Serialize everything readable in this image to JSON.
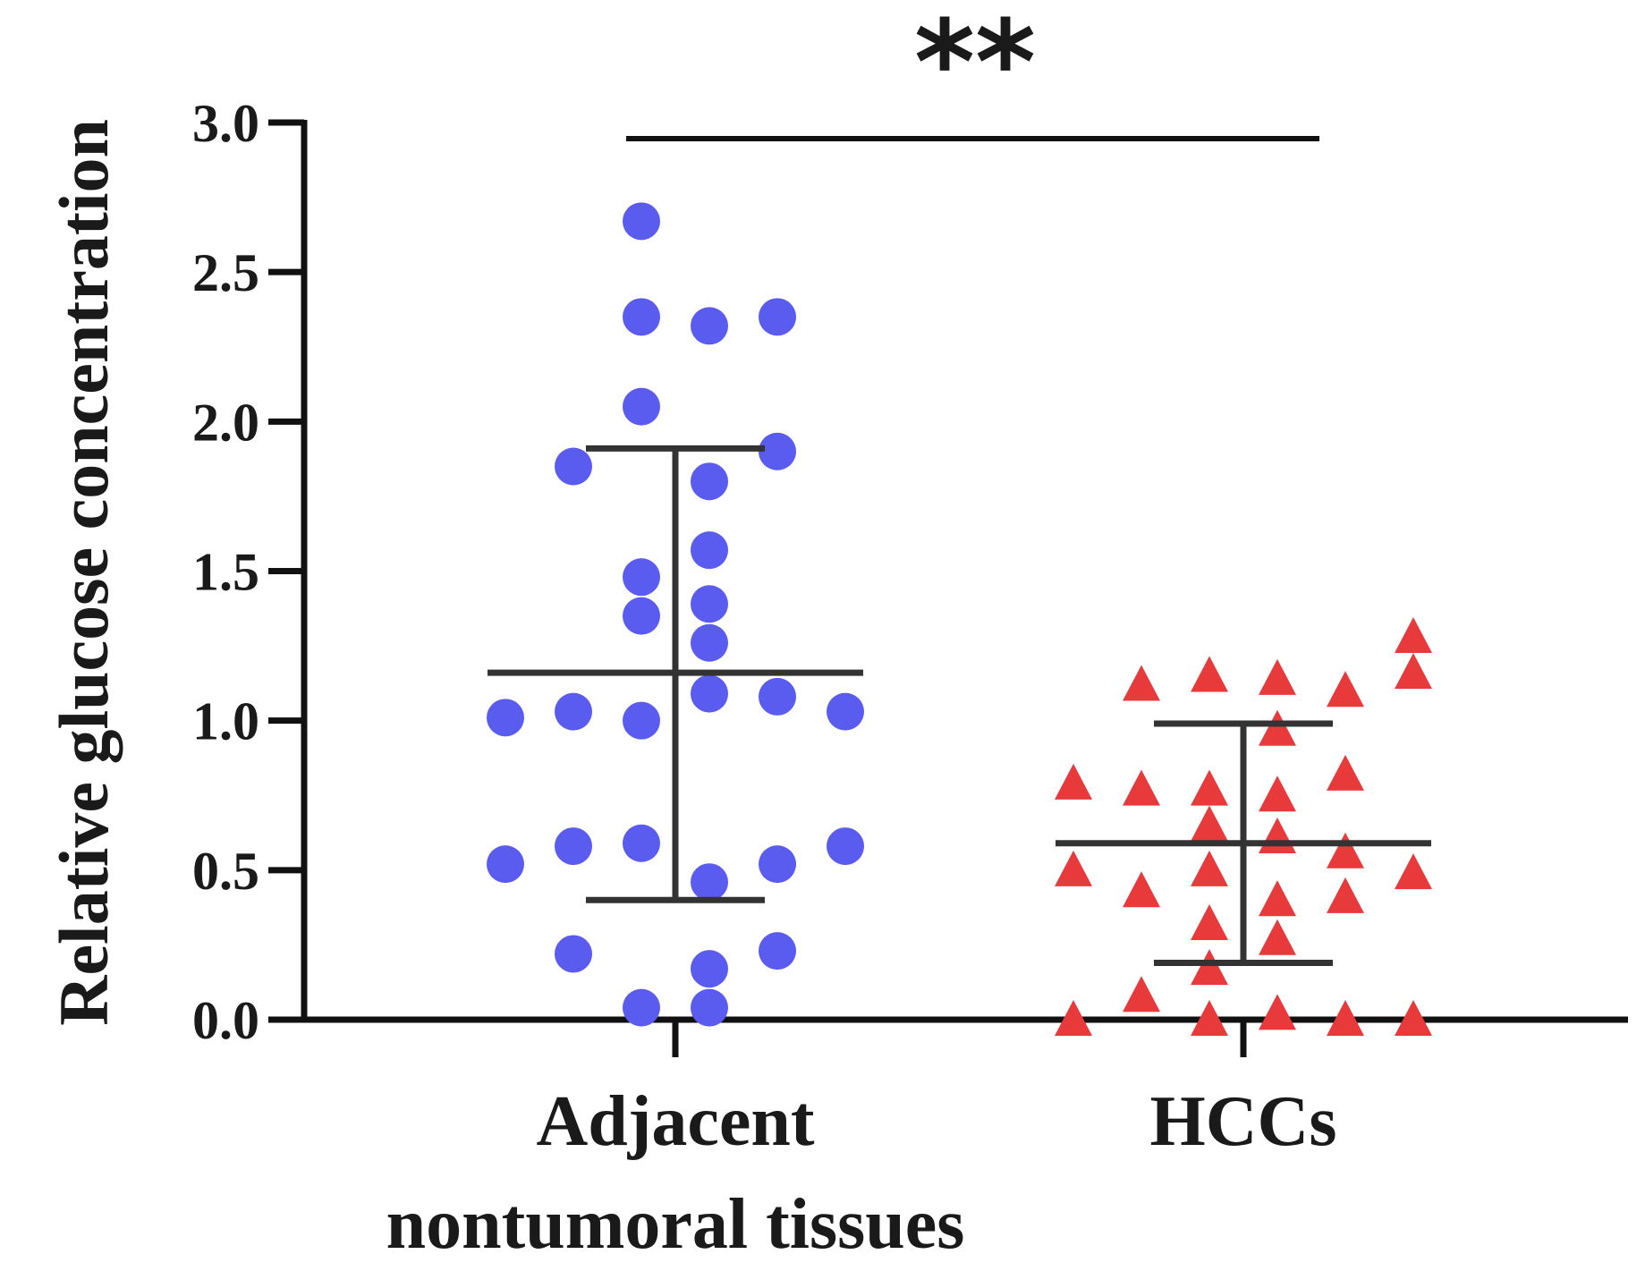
{
  "chart_data": {
    "type": "scatter",
    "ylabel": "Relative glucose concentration",
    "ylim": [
      0,
      3.0
    ],
    "yticks": [
      "0.0",
      "0.5",
      "1.0",
      "1.5",
      "2.0",
      "2.5",
      "3.0"
    ],
    "categories": [
      "Adjacent\nnontumoral tissues",
      "HCCs"
    ],
    "category_lines": [
      [
        "Adjacent",
        "nontumoral tissues"
      ],
      [
        "HCCs"
      ]
    ],
    "significance": "**",
    "series": [
      {
        "category": 0,
        "marker": "circle",
        "color": "#5a5cef",
        "mean": 1.16,
        "sd_upper": 1.91,
        "sd_lower": 0.4,
        "points": [
          {
            "y": 2.67,
            "offset": -0.5
          },
          {
            "y": 2.35,
            "offset": -0.5
          },
          {
            "y": 2.32,
            "offset": 0.5
          },
          {
            "y": 2.35,
            "offset": 1.5
          },
          {
            "y": 2.05,
            "offset": -0.5
          },
          {
            "y": 1.85,
            "offset": -1.5
          },
          {
            "y": 1.9,
            "offset": 1.5
          },
          {
            "y": 1.8,
            "offset": 0.5
          },
          {
            "y": 1.57,
            "offset": 0.5
          },
          {
            "y": 1.48,
            "offset": -0.5
          },
          {
            "y": 1.39,
            "offset": 0.5
          },
          {
            "y": 1.35,
            "offset": -0.5
          },
          {
            "y": 1.26,
            "offset": 0.5
          },
          {
            "y": 1.09,
            "offset": 0.5
          },
          {
            "y": 1.08,
            "offset": 1.5
          },
          {
            "y": 1.01,
            "offset": -2.5
          },
          {
            "y": 1.03,
            "offset": -1.5
          },
          {
            "y": 1.0,
            "offset": -0.5
          },
          {
            "y": 1.03,
            "offset": 2.5
          },
          {
            "y": 0.52,
            "offset": -2.5
          },
          {
            "y": 0.58,
            "offset": -1.5
          },
          {
            "y": 0.59,
            "offset": -0.5
          },
          {
            "y": 0.46,
            "offset": 0.5
          },
          {
            "y": 0.52,
            "offset": 1.5
          },
          {
            "y": 0.58,
            "offset": 2.5
          },
          {
            "y": 0.22,
            "offset": -1.5
          },
          {
            "y": 0.17,
            "offset": 0.5
          },
          {
            "y": 0.23,
            "offset": 1.5
          },
          {
            "y": 0.04,
            "offset": -0.5
          },
          {
            "y": 0.04,
            "offset": 0.5
          }
        ]
      },
      {
        "category": 1,
        "marker": "triangle",
        "color": "#e8393b",
        "mean": 0.59,
        "sd_upper": 0.99,
        "sd_lower": 0.19,
        "points": [
          {
            "y": 1.28,
            "offset": 2.5
          },
          {
            "y": 1.16,
            "offset": 2.5
          },
          {
            "y": 1.12,
            "offset": -1.5
          },
          {
            "y": 1.15,
            "offset": -0.5
          },
          {
            "y": 1.14,
            "offset": 0.5
          },
          {
            "y": 1.1,
            "offset": 1.5
          },
          {
            "y": 0.97,
            "offset": 0.5
          },
          {
            "y": 0.79,
            "offset": -2.5
          },
          {
            "y": 0.77,
            "offset": -1.5
          },
          {
            "y": 0.77,
            "offset": -0.5
          },
          {
            "y": 0.75,
            "offset": 0.5
          },
          {
            "y": 0.82,
            "offset": 1.5
          },
          {
            "y": 0.65,
            "offset": -0.5
          },
          {
            "y": 0.61,
            "offset": 0.5
          },
          {
            "y": 0.56,
            "offset": 1.5
          },
          {
            "y": 0.5,
            "offset": -2.5
          },
          {
            "y": 0.5,
            "offset": -0.5
          },
          {
            "y": 0.49,
            "offset": 2.5
          },
          {
            "y": 0.43,
            "offset": -1.5
          },
          {
            "y": 0.4,
            "offset": 0.5
          },
          {
            "y": 0.41,
            "offset": 1.5
          },
          {
            "y": 0.32,
            "offset": -0.5
          },
          {
            "y": 0.27,
            "offset": 0.5
          },
          {
            "y": 0.17,
            "offset": -0.5
          },
          {
            "y": 0.08,
            "offset": -1.5
          },
          {
            "y": 0.0,
            "offset": -2.5
          },
          {
            "y": 0.0,
            "offset": -0.5
          },
          {
            "y": 0.02,
            "offset": 0.5
          },
          {
            "y": 0.0,
            "offset": 1.5
          },
          {
            "y": 0.0,
            "offset": 2.5
          }
        ]
      }
    ]
  }
}
